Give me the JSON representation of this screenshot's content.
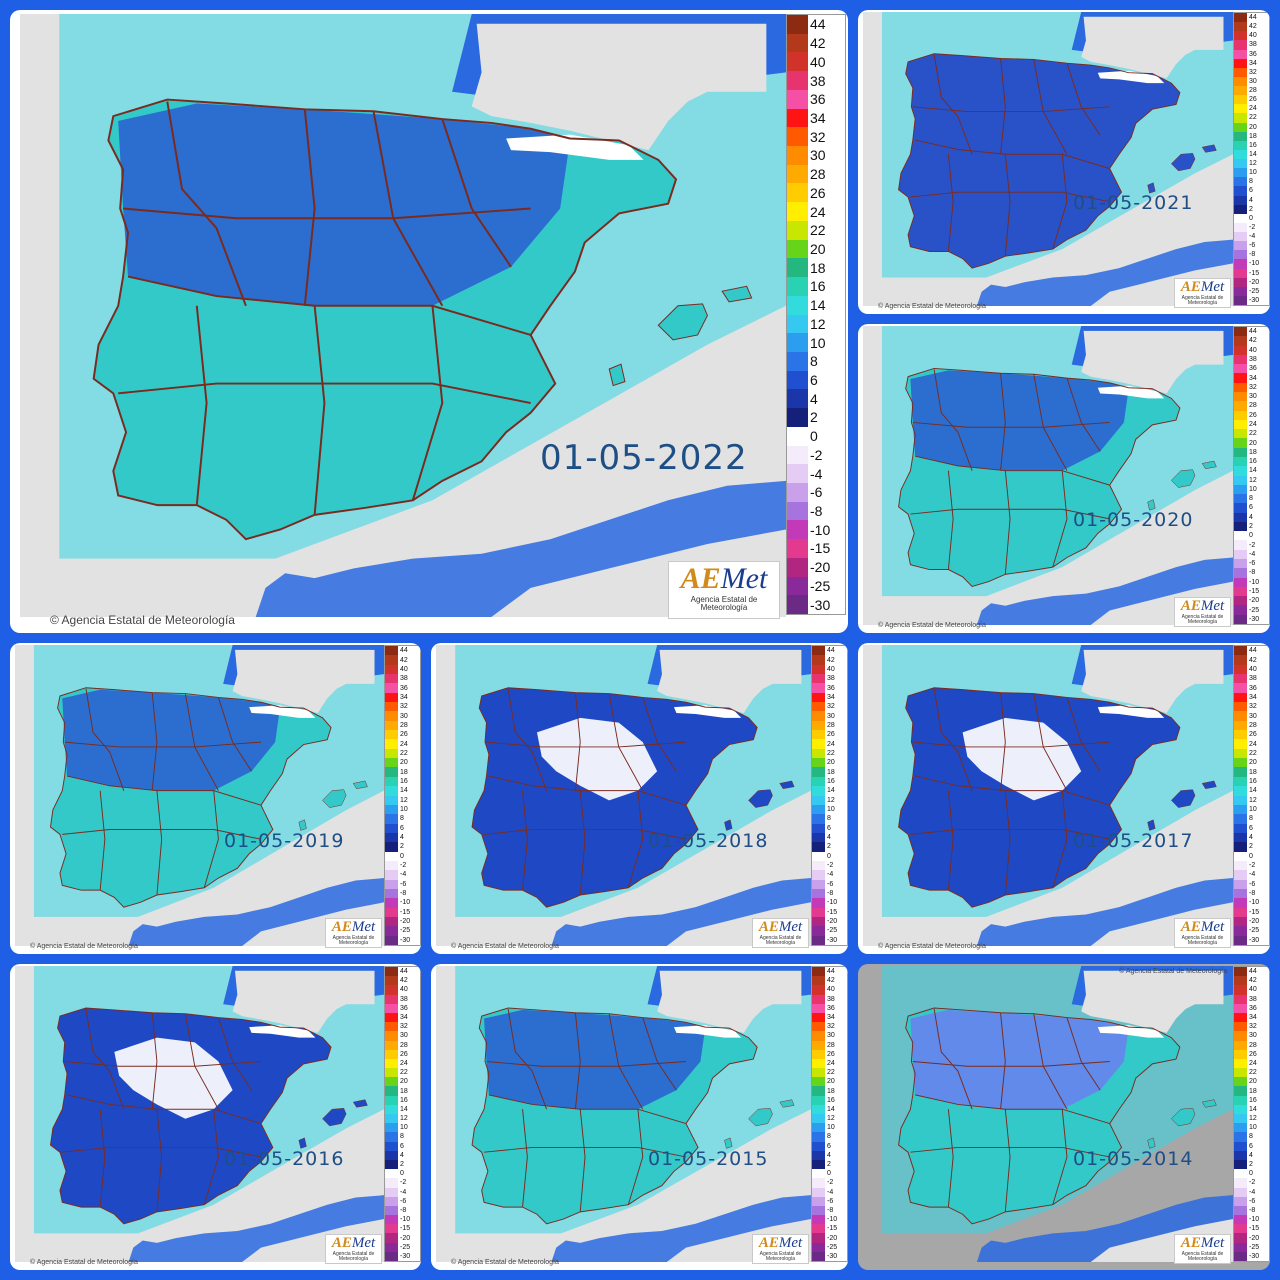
{
  "title": "",
  "colors": {
    "border": "#1f5fe6",
    "sea_deep": "#2a69e0",
    "sea_light": "#34d6e4",
    "land_foreign": "#e2e2e2",
    "land_cold": "#2a52c8",
    "land_mild": "#33c9c9",
    "snow": "#ffffff",
    "grey_bg": "#a7a7a7",
    "borders": "#7a2a1e"
  },
  "legend": {
    "positive": [
      {
        "label": "44",
        "color": "#8c2a12"
      },
      {
        "label": "42",
        "color": "#b23a1a"
      },
      {
        "label": "40",
        "color": "#d1332b"
      },
      {
        "label": "38",
        "color": "#e7346f"
      },
      {
        "label": "36",
        "color": "#f64fa6"
      },
      {
        "label": "34",
        "color": "#ff1414"
      },
      {
        "label": "32",
        "color": "#ff5a00"
      },
      {
        "label": "30",
        "color": "#ff8c00"
      },
      {
        "label": "28",
        "color": "#ffaa00"
      },
      {
        "label": "26",
        "color": "#ffcc00"
      },
      {
        "label": "24",
        "color": "#ffee00"
      },
      {
        "label": "22",
        "color": "#c8e600"
      },
      {
        "label": "20",
        "color": "#66d418"
      },
      {
        "label": "18",
        "color": "#24b880"
      },
      {
        "label": "16",
        "color": "#2ad2b4"
      },
      {
        "label": "14",
        "color": "#33dcdc"
      },
      {
        "label": "12",
        "color": "#35c8f0"
      },
      {
        "label": "10",
        "color": "#2c9ef0"
      },
      {
        "label": "8",
        "color": "#2a74e8"
      },
      {
        "label": "6",
        "color": "#2050d0"
      },
      {
        "label": "4",
        "color": "#1a36a8"
      },
      {
        "label": "2",
        "color": "#14207a"
      }
    ],
    "zero": "0",
    "negative": [
      {
        "label": "-2",
        "color": "#f4ecfa"
      },
      {
        "label": "-4",
        "color": "#e4ccf4"
      },
      {
        "label": "-6",
        "color": "#c9a1ea"
      },
      {
        "label": "-8",
        "color": "#a773de"
      },
      {
        "label": "-10",
        "color": "#c23ab8"
      },
      {
        "label": "-15",
        "color": "#e33a8f"
      },
      {
        "label": "-20",
        "color": "#b02680"
      },
      {
        "label": "-25",
        "color": "#8a2a9a"
      },
      {
        "label": "-30",
        "color": "#6a2a86"
      }
    ]
  },
  "credit": "Agencia Estatal de Meteorología",
  "logo": {
    "text": "Met",
    "prefix": "AE",
    "subtitle": "Agencia Estatal de Meteorología"
  },
  "panels": [
    {
      "id": "p2022",
      "date": "01-05-2022",
      "style": "mild"
    },
    {
      "id": "p2021",
      "date": "01-05-2021",
      "style": "cold"
    },
    {
      "id": "p2020",
      "date": "01-05-2020",
      "style": "mild"
    },
    {
      "id": "p2019",
      "date": "01-05-2019",
      "style": "mild"
    },
    {
      "id": "p2018",
      "date": "01-05-2018",
      "style": "snow"
    },
    {
      "id": "p2017",
      "date": "01-05-2017",
      "style": "snow"
    },
    {
      "id": "p2016",
      "date": "01-05-2016",
      "style": "snow"
    },
    {
      "id": "p2015",
      "date": "01-05-2015",
      "style": "mild"
    },
    {
      "id": "p2014",
      "date": "01-05-2014",
      "style": "grey"
    }
  ]
}
